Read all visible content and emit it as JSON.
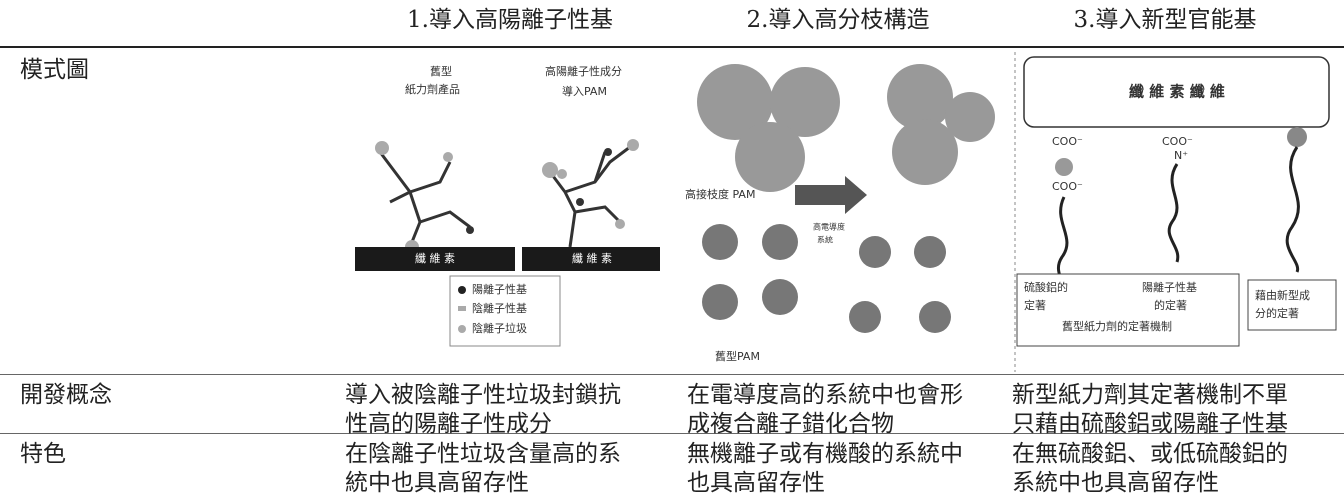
{
  "table": {
    "header": [
      "1.導入高陽離子性基",
      "2.導入高分枝構造",
      "3.導入新型官能基"
    ],
    "rows": [
      {
        "label": "模式圖"
      },
      {
        "label": "開發概念",
        "cells": [
          [
            "導入被陰離子性垃圾封鎖抗",
            "性高的陽離子性成分"
          ],
          [
            "在電導度高的系統中也會形",
            "成複合離子錯化合物"
          ],
          [
            "新型紙力劑其定著機制不單",
            "只藉由硫酸鋁或陽離子性基"
          ]
        ]
      },
      {
        "label": "特色",
        "cells": [
          [
            "在陰離子性垃圾含量高的系",
            "統中也具高留存性"
          ],
          [
            "無機離子或有機酸的系統中",
            "也具高留存性"
          ],
          [
            "在無硫酸鋁、或低硫酸鋁的",
            "系統中也具高留存性"
          ]
        ]
      }
    ]
  },
  "figures": [
    {
      "labels": [
        "舊型",
        "紙力劑產品",
        "高陽離子性成分",
        "導入PAM",
        "纖 維 素",
        "纖 維 素",
        "陽離子性基",
        "陰離子性基",
        "陰離子垃圾"
      ]
    },
    {
      "labels": [
        "高接枝度 PAM",
        "高電導度",
        "系統",
        "舊型PAM"
      ]
    },
    {
      "labels": [
        "纖 維 素 纖 維",
        "COO⁻",
        "COO⁻",
        "N⁺",
        "COO⁻",
        "硫酸鋁的",
        "定著",
        "陽離子性基",
        "的定著",
        "舊型紙力劑的定著機制",
        "藉由新型成",
        "分的定著"
      ]
    }
  ]
}
